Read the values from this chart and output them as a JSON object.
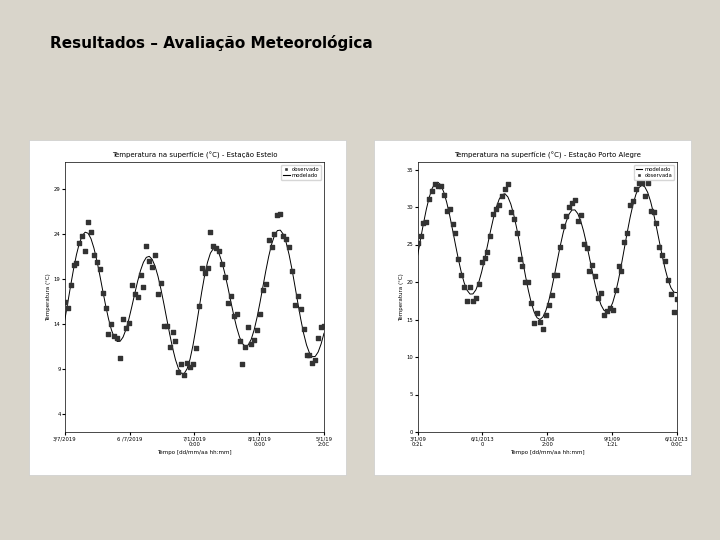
{
  "title": "Resultados – Avaliação Meteorológica",
  "title_fontsize": 11,
  "title_fontweight": "bold",
  "background_color": "#d9d5cb",
  "plot_bg": "#ffffff",
  "slide_bg": "#d9d5cb",
  "chart1": {
    "title": "Temperatura na superfície (°C) - Estação Esteio",
    "xlabel": "Tempo [dd/mm/aa hh:mm]",
    "ylabel": "Temperatura (°C)",
    "yticks": [
      4,
      9,
      14,
      19,
      24,
      29
    ],
    "xtick_labels": [
      "3/7/2019",
      "6 /7/2019",
      "7/1/2019\n0:00",
      "8/1/2019\n0:00",
      "5/1/19\n2:0C"
    ],
    "ylim": [
      2,
      32
    ],
    "modeled_color": "#000000",
    "observed_color": "#333333",
    "legend_modeled": "modelado",
    "legend_observed": "observado"
  },
  "chart2": {
    "title": "Temperatura na superfície (°C) - Estação Porto Alegre",
    "xlabel": "Tempo [dd/mm/aa hh:mm]",
    "ylabel": "Temperatura (°C)",
    "yticks": [
      0,
      5,
      10,
      15,
      20,
      25,
      30,
      35
    ],
    "xtick_labels": [
      "3/1/09\n0:2L",
      "6/1/2013\n0",
      "C1/06\n2:00",
      "9/1/09\n1:2L",
      "6/1/2013\n0:0C"
    ],
    "ylim": [
      0,
      36
    ],
    "modeled_color": "#000000",
    "observed_color": "#333333",
    "legend_modeled": "modelado",
    "legend_observed": "observada"
  }
}
